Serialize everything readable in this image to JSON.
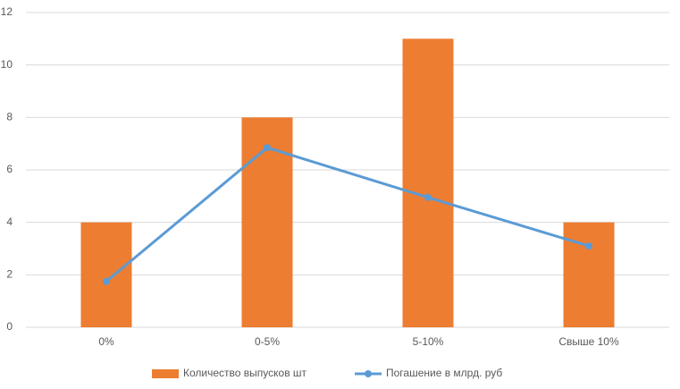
{
  "chart_data": {
    "type": "bar",
    "categories": [
      "0%",
      "0-5%",
      "5-10%",
      "Свыше 10%"
    ],
    "series": [
      {
        "name": "Количество выпусков шт",
        "color": "#ed7d31",
        "values": [
          4,
          8,
          11,
          4
        ]
      },
      {
        "name": "Погашение в млрд. руб",
        "color": "#5b9bd5",
        "type": "line",
        "values": [
          1.75,
          6.85,
          4.95,
          3.1
        ]
      }
    ],
    "ylim": [
      0,
      12
    ],
    "yticks": [
      0,
      2,
      4,
      6,
      8,
      10,
      12
    ],
    "grid": true,
    "legend": "bottom"
  }
}
